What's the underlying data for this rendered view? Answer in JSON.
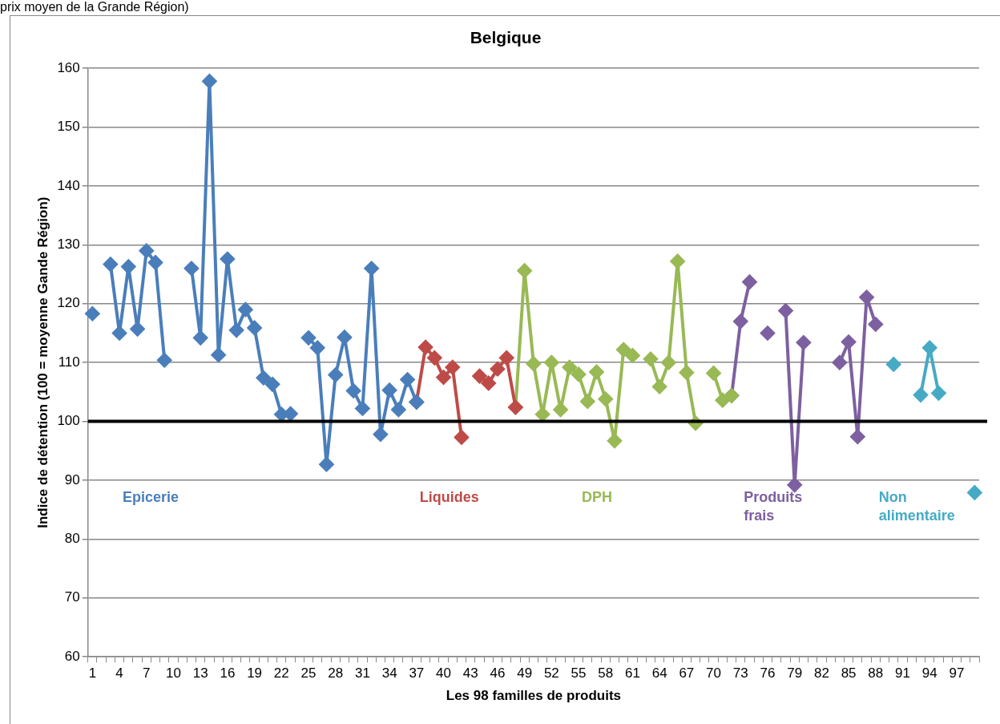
{
  "chart_data": {
    "type": "line",
    "title": "Belgique",
    "xlabel": "Les 98 familles de produits",
    "ylabel": "Indice de détention (100 = moyenne Gande Région)",
    "categories": [
      "1",
      null,
      null,
      "4",
      null,
      null,
      "7",
      null,
      null,
      "10",
      null,
      null,
      "13",
      null,
      null,
      "16",
      null,
      null,
      "19",
      null,
      null,
      "22",
      null,
      null,
      "25",
      null,
      null,
      "28",
      null,
      null,
      "31",
      null,
      null,
      "34",
      null,
      null,
      "37",
      null,
      null,
      "40",
      null,
      null,
      "43",
      null,
      null,
      "46",
      null,
      null,
      "49",
      null,
      null,
      "52",
      null,
      null,
      "55",
      null,
      null,
      "58",
      null,
      null,
      "61",
      null,
      null,
      "64",
      null,
      null,
      "67",
      null,
      null,
      "70",
      null,
      null,
      "73",
      null,
      null,
      "76",
      null,
      null,
      "79",
      null,
      null,
      "82",
      null,
      null,
      "85",
      null,
      null,
      "88",
      null,
      null,
      "91",
      null,
      null,
      "94",
      null,
      null,
      "97",
      null,
      null
    ],
    "series": [
      {
        "name": "Epicerie",
        "color": "#4a7ebb",
        "values": [
          118.3,
          null,
          126.7,
          115,
          126.3,
          115.7,
          129,
          127,
          110.4,
          null,
          null,
          126,
          114.2,
          157.8,
          111.3,
          127.6,
          115.5,
          119,
          115.9,
          107.4,
          106.3,
          101.2,
          101.3,
          null,
          114.2,
          112.5,
          92.7,
          107.9,
          114.3,
          105.2,
          102.2,
          126,
          97.8,
          105.3,
          102,
          107.1,
          103.3,
          null,
          null,
          null,
          null,
          null,
          null,
          null,
          null,
          null,
          null,
          null,
          null,
          null,
          null,
          null,
          null,
          null,
          null,
          null,
          null,
          null,
          null,
          null,
          null,
          null,
          null,
          null,
          null,
          null,
          null,
          null,
          null,
          null,
          null,
          null,
          null,
          null,
          null,
          null,
          null,
          null,
          null,
          null,
          null,
          null,
          null,
          null,
          null,
          null,
          null,
          null,
          null,
          null,
          null,
          null,
          null,
          null,
          null,
          null,
          null,
          null,
          null
        ]
      },
      {
        "name": "Liquides",
        "color": "#be4b48",
        "values": [
          null,
          null,
          null,
          null,
          null,
          null,
          null,
          null,
          null,
          null,
          null,
          null,
          null,
          null,
          null,
          null,
          null,
          null,
          null,
          null,
          null,
          null,
          null,
          null,
          null,
          null,
          null,
          null,
          null,
          null,
          null,
          null,
          null,
          null,
          null,
          null,
          103.3,
          112.6,
          110.8,
          107.5,
          109.2,
          97.3,
          null,
          107.7,
          106.5,
          108.9,
          110.8,
          102.4,
          null,
          null,
          null,
          null,
          null,
          null,
          null,
          null,
          null,
          null,
          null,
          null,
          null,
          null,
          null,
          null,
          null,
          null,
          null,
          null,
          null,
          null,
          null,
          null,
          null,
          null,
          null,
          null,
          null,
          null,
          null,
          null,
          null,
          null,
          null,
          null,
          null,
          null,
          null,
          null,
          null,
          null,
          null,
          null,
          null,
          null,
          null,
          null,
          null,
          null,
          null
        ]
      },
      {
        "name": "DPH",
        "color": "#98b954",
        "values": [
          null,
          null,
          null,
          null,
          null,
          null,
          null,
          null,
          null,
          null,
          null,
          null,
          null,
          null,
          null,
          null,
          null,
          null,
          null,
          null,
          null,
          null,
          null,
          null,
          null,
          null,
          null,
          null,
          null,
          null,
          null,
          null,
          null,
          null,
          null,
          null,
          null,
          null,
          null,
          null,
          null,
          null,
          null,
          null,
          null,
          null,
          null,
          102.4,
          125.6,
          109.8,
          101.2,
          110,
          102,
          109.2,
          108,
          103.4,
          108.4,
          103.8,
          96.7,
          112.2,
          111.2,
          null,
          110.6,
          105.9,
          110,
          127.2,
          108.3,
          99.7,
          null,
          108.2,
          103.6,
          104.4,
          null,
          null,
          null,
          null,
          null,
          null,
          null,
          null,
          null,
          null,
          null,
          null,
          null,
          null,
          null,
          null,
          null,
          null,
          null,
          null,
          null,
          null,
          null,
          null,
          null,
          null,
          null
        ]
      },
      {
        "name": "Produits frais",
        "color": "#7d60a0",
        "values": [
          null,
          null,
          null,
          null,
          null,
          null,
          null,
          null,
          null,
          null,
          null,
          null,
          null,
          null,
          null,
          null,
          null,
          null,
          null,
          null,
          null,
          null,
          null,
          null,
          null,
          null,
          null,
          null,
          null,
          null,
          null,
          null,
          null,
          null,
          null,
          null,
          null,
          null,
          null,
          null,
          null,
          null,
          null,
          null,
          null,
          null,
          null,
          null,
          null,
          null,
          null,
          null,
          null,
          null,
          null,
          null,
          null,
          null,
          null,
          null,
          null,
          null,
          null,
          null,
          null,
          null,
          null,
          null,
          null,
          null,
          null,
          104.4,
          117,
          123.7,
          null,
          115,
          null,
          118.8,
          89.2,
          113.4,
          null,
          null,
          null,
          110,
          113.5,
          97.4,
          121.1,
          116.5,
          null,
          null,
          null,
          null,
          null,
          null,
          null,
          null,
          null,
          null,
          null
        ]
      },
      {
        "name": "Non alimentaire",
        "color": "#46aac5",
        "values": [
          null,
          null,
          null,
          null,
          null,
          null,
          null,
          null,
          null,
          null,
          null,
          null,
          null,
          null,
          null,
          null,
          null,
          null,
          null,
          null,
          null,
          null,
          null,
          null,
          null,
          null,
          null,
          null,
          null,
          null,
          null,
          null,
          null,
          null,
          null,
          null,
          null,
          null,
          null,
          null,
          null,
          null,
          null,
          null,
          null,
          null,
          null,
          null,
          null,
          null,
          null,
          null,
          null,
          null,
          null,
          null,
          null,
          null,
          null,
          null,
          null,
          null,
          null,
          null,
          null,
          null,
          null,
          null,
          null,
          null,
          null,
          null,
          null,
          null,
          null,
          null,
          null,
          null,
          null,
          null,
          null,
          null,
          null,
          null,
          null,
          null,
          null,
          null,
          null,
          109.7,
          null,
          null,
          104.5,
          112.5,
          104.8,
          null,
          null,
          null,
          87.9
        ]
      }
    ],
    "ylim": [
      60,
      160
    ],
    "yticks": [
      60,
      70,
      80,
      90,
      100,
      110,
      120,
      130,
      140,
      150,
      160
    ],
    "grid": "y",
    "marker": "diamond",
    "line_style": "solid",
    "ref_lines": [
      {
        "axis": "y",
        "value": 100,
        "color": "#000000"
      }
    ],
    "annotations": [
      "prix moyen de la Grande Région)"
    ]
  }
}
